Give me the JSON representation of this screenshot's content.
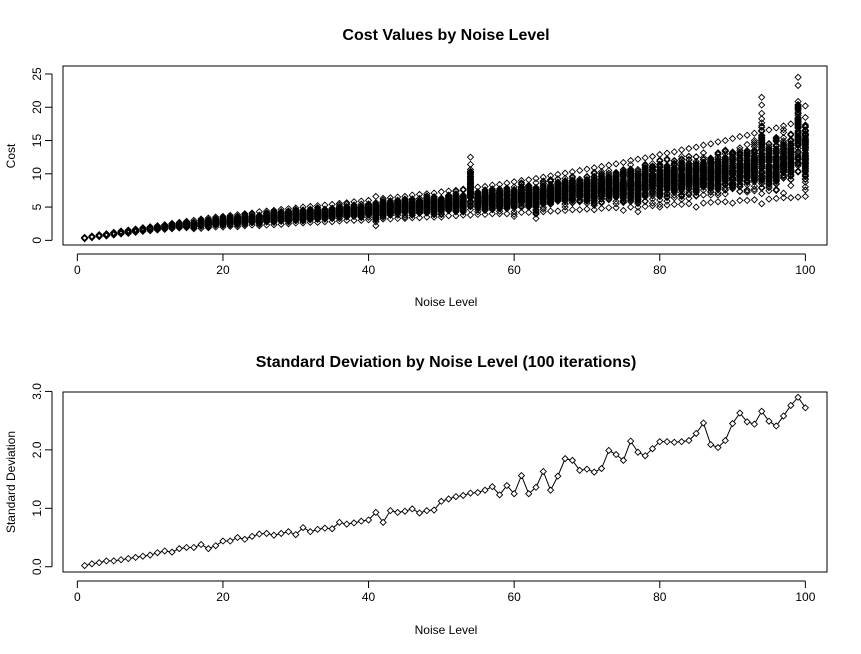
{
  "chart_data": [
    {
      "type": "scatter",
      "title": "Cost Values by Noise Level",
      "xlabel": "Noise Level",
      "ylabel": "Cost",
      "xlim": [
        -1.97,
        102.97
      ],
      "ylim": [
        -0.7,
        26.2
      ],
      "xticks": [
        0,
        20,
        40,
        60,
        80,
        100
      ],
      "yticks": [
        0,
        5,
        10,
        15,
        20,
        25
      ],
      "marker": "open-diamond",
      "grid": false,
      "points_per_level": 100,
      "series": [
        {
          "x": [
            1,
            2,
            3,
            4,
            5,
            6,
            7,
            8,
            9,
            10,
            11,
            12,
            13,
            14,
            15,
            16,
            17,
            18,
            19,
            20,
            21,
            22,
            23,
            24,
            25,
            26,
            27,
            28,
            29,
            30,
            31,
            32,
            33,
            34,
            35,
            36,
            37,
            38,
            39,
            40,
            41,
            42,
            43,
            44,
            45,
            46,
            47,
            48,
            49,
            50,
            51,
            52,
            53,
            54,
            55,
            56,
            57,
            58,
            59,
            60,
            61,
            62,
            63,
            64,
            65,
            66,
            67,
            68,
            69,
            70,
            71,
            72,
            73,
            74,
            75,
            76,
            77,
            78,
            79,
            80,
            81,
            82,
            83,
            84,
            85,
            86,
            87,
            88,
            89,
            90,
            91,
            92,
            93,
            94,
            95,
            96,
            97,
            98,
            99,
            100
          ],
          "min": [
            0.25,
            0.4,
            0.55,
            0.65,
            0.8,
            0.95,
            1.05,
            1.2,
            1.35,
            1.45,
            1.55,
            1.65,
            1.75,
            1.85,
            1.9,
            1.75,
            1.8,
            1.9,
            2.0,
            2.0,
            2.1,
            2.05,
            2.2,
            2.3,
            2.2,
            2.3,
            2.35,
            2.4,
            2.5,
            2.6,
            2.6,
            2.7,
            2.7,
            2.8,
            2.8,
            2.9,
            3.0,
            3.0,
            3.0,
            3.1,
            2.2,
            3.2,
            3.2,
            3.3,
            3.3,
            3.4,
            3.4,
            3.5,
            3.5,
            3.5,
            3.7,
            3.7,
            3.8,
            3.8,
            3.9,
            3.9,
            4.0,
            4.0,
            4.0,
            3.6,
            4.2,
            4.2,
            3.3,
            4.3,
            4.4,
            4.4,
            4.5,
            4.6,
            4.6,
            4.7,
            4.6,
            4.8,
            4.9,
            4.9,
            4.5,
            5.0,
            4.3,
            5.1,
            5.2,
            5.0,
            5.3,
            5.4,
            5.4,
            5.5,
            5.0,
            5.6,
            5.7,
            5.8,
            5.8,
            5.6,
            6.0,
            6.0,
            6.1,
            5.5,
            6.2,
            6.3,
            6.4,
            6.4,
            6.5,
            6.6
          ],
          "max": [
            0.45,
            0.65,
            0.85,
            1.0,
            1.2,
            1.4,
            1.55,
            1.7,
            1.9,
            2.05,
            2.2,
            2.35,
            2.55,
            2.7,
            2.85,
            3.0,
            3.2,
            3.35,
            3.5,
            3.6,
            3.75,
            3.85,
            4.0,
            4.1,
            4.3,
            4.4,
            4.5,
            4.65,
            4.75,
            4.85,
            5.0,
            5.1,
            5.2,
            5.3,
            5.4,
            5.55,
            5.65,
            5.8,
            5.9,
            6.0,
            6.6,
            6.3,
            6.4,
            6.5,
            6.6,
            6.8,
            6.9,
            7.0,
            7.1,
            7.3,
            7.4,
            7.5,
            7.7,
            12.5,
            8.0,
            8.1,
            8.3,
            8.4,
            8.6,
            8.8,
            9.0,
            9.1,
            9.3,
            9.5,
            9.7,
            9.9,
            10.1,
            10.3,
            10.5,
            10.7,
            10.9,
            11.1,
            11.3,
            11.5,
            11.7,
            12.0,
            12.2,
            12.4,
            12.6,
            12.9,
            13.1,
            13.3,
            13.6,
            13.8,
            14.0,
            14.3,
            14.5,
            14.8,
            15.0,
            15.3,
            15.6,
            15.8,
            16.1,
            21.5,
            16.6,
            16.9,
            17.2,
            17.5,
            24.5,
            20.2
          ]
        }
      ]
    },
    {
      "type": "line",
      "title": "Standard Deviation by Noise Level (100 iterations)",
      "xlabel": "Noise Level",
      "ylabel": "Standard Deviation",
      "xlim": [
        -1.97,
        102.97
      ],
      "ylim": [
        -0.09,
        2.99
      ],
      "xticks": [
        0,
        20,
        40,
        60,
        80,
        100
      ],
      "yticks": [
        "0.0",
        "1.0",
        "2.0",
        "3.0"
      ],
      "marker": "open-diamond",
      "grid": false,
      "series": [
        {
          "x": [
            1,
            2,
            3,
            4,
            5,
            6,
            7,
            8,
            9,
            10,
            11,
            12,
            13,
            14,
            15,
            16,
            17,
            18,
            19,
            20,
            21,
            22,
            23,
            24,
            25,
            26,
            27,
            28,
            29,
            30,
            31,
            32,
            33,
            34,
            35,
            36,
            37,
            38,
            39,
            40,
            41,
            42,
            43,
            44,
            45,
            46,
            47,
            48,
            49,
            50,
            51,
            52,
            53,
            54,
            55,
            56,
            57,
            58,
            59,
            60,
            61,
            62,
            63,
            64,
            65,
            66,
            67,
            68,
            69,
            70,
            71,
            72,
            73,
            74,
            75,
            76,
            77,
            78,
            79,
            80,
            81,
            82,
            83,
            84,
            85,
            86,
            87,
            88,
            89,
            90,
            91,
            92,
            93,
            94,
            95,
            96,
            97,
            98,
            99,
            100
          ],
          "values": [
            0.02,
            0.05,
            0.07,
            0.1,
            0.1,
            0.12,
            0.14,
            0.16,
            0.18,
            0.2,
            0.24,
            0.27,
            0.25,
            0.31,
            0.33,
            0.33,
            0.38,
            0.31,
            0.36,
            0.44,
            0.44,
            0.5,
            0.47,
            0.52,
            0.56,
            0.57,
            0.54,
            0.57,
            0.6,
            0.55,
            0.67,
            0.6,
            0.64,
            0.66,
            0.65,
            0.76,
            0.73,
            0.75,
            0.78,
            0.8,
            0.93,
            0.76,
            0.96,
            0.93,
            0.95,
            0.99,
            0.92,
            0.96,
            0.97,
            1.12,
            1.16,
            1.2,
            1.22,
            1.26,
            1.27,
            1.31,
            1.37,
            1.23,
            1.39,
            1.25,
            1.56,
            1.25,
            1.36,
            1.63,
            1.31,
            1.55,
            1.85,
            1.82,
            1.65,
            1.67,
            1.62,
            1.68,
            1.99,
            1.92,
            1.82,
            2.15,
            1.96,
            1.9,
            2.02,
            2.14,
            2.14,
            2.13,
            2.14,
            2.16,
            2.28,
            2.46,
            2.09,
            2.04,
            2.16,
            2.45,
            2.63,
            2.48,
            2.44,
            2.66,
            2.49,
            2.41,
            2.58,
            2.76,
            2.9,
            2.72
          ]
        }
      ]
    }
  ]
}
